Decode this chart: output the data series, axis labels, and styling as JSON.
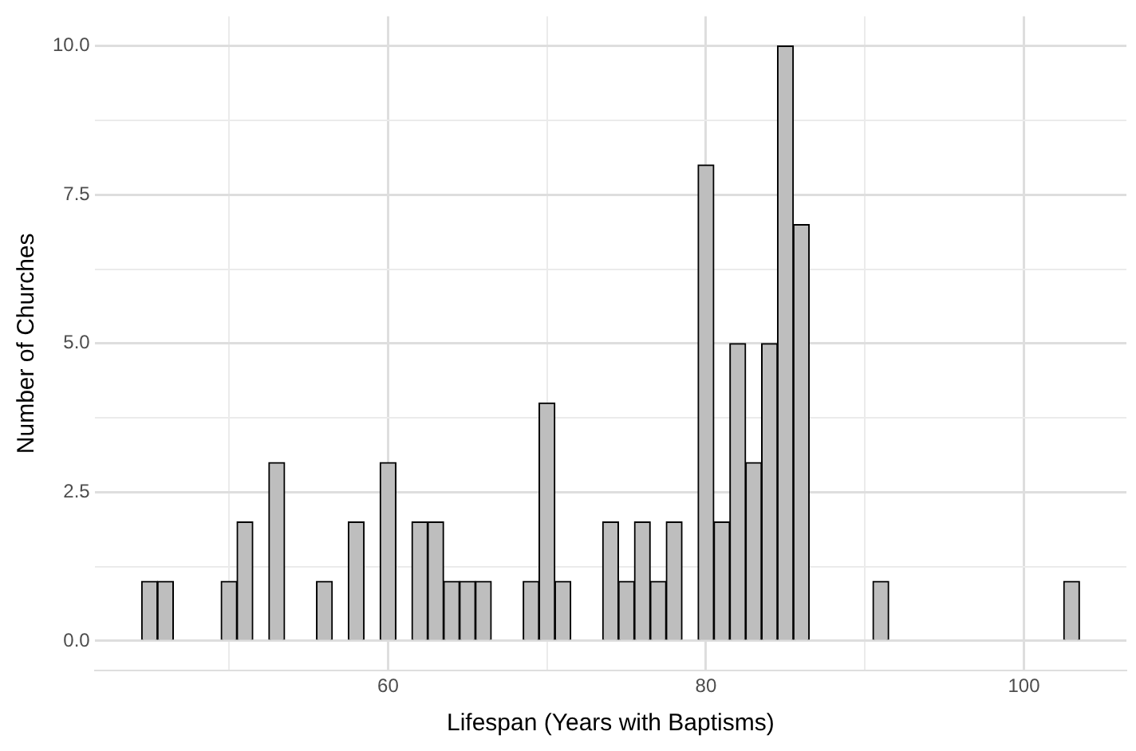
{
  "chart_data": {
    "type": "histogram",
    "xlabel": "Lifespan (Years with Baptisms)",
    "ylabel": "Number of Churches",
    "bins": [
      44.5,
      45.5,
      46.5,
      47.5,
      48.5,
      49.5,
      50.5,
      51.5,
      52.5,
      53.5,
      54.5,
      55.5,
      56.5,
      57.5,
      58.5,
      59.5,
      60.5,
      61.5,
      62.5,
      63.5,
      64.5,
      65.5,
      66.5,
      67.5,
      68.5,
      69.5,
      70.5,
      71.5,
      72.5,
      73.5,
      74.5,
      75.5,
      76.5,
      77.5,
      78.5,
      79.5,
      80.5,
      81.5,
      82.5,
      83.5,
      84.5,
      85.5,
      86.5,
      87.5,
      88.5,
      89.5,
      90.5,
      91.5,
      92.5,
      93.5,
      94.5,
      95.5,
      96.5,
      97.5,
      98.5,
      99.5,
      100.5,
      101.5,
      102.5,
      103.5
    ],
    "values": [
      1,
      1,
      0,
      0,
      0,
      1,
      2,
      0,
      3,
      0,
      0,
      1,
      0,
      2,
      0,
      3,
      0,
      2,
      2,
      1,
      1,
      1,
      0,
      0,
      1,
      4,
      1,
      0,
      0,
      2,
      1,
      2,
      1,
      2,
      0,
      8,
      2,
      5,
      3,
      5,
      10,
      7,
      0,
      0,
      0,
      0,
      1,
      0,
      0,
      0,
      0,
      0,
      0,
      0,
      0,
      0,
      0,
      0,
      1
    ],
    "color": "#bebebe",
    "xlim": [
      41.55,
      106.45
    ],
    "xticks": [
      {
        "value": 50,
        "label": null
      },
      60,
      {
        "value": 70,
        "label": null
      },
      80,
      {
        "value": 90,
        "label": null
      },
      100
    ],
    "ylim": [
      -0.5,
      10.5
    ],
    "yticks": [
      {
        "value": 0,
        "label": "0.0"
      },
      {
        "value": 1.25,
        "label": null
      },
      {
        "value": 2.5,
        "label": "2.5"
      },
      {
        "value": 3.75,
        "label": null
      },
      {
        "value": 5,
        "label": "5.0"
      },
      {
        "value": 6.25,
        "label": null
      },
      {
        "value": 7.5,
        "label": "7.5"
      },
      {
        "value": 8.75,
        "label": null
      },
      {
        "value": 10,
        "label": "10.0"
      }
    ],
    "grid": true
  }
}
